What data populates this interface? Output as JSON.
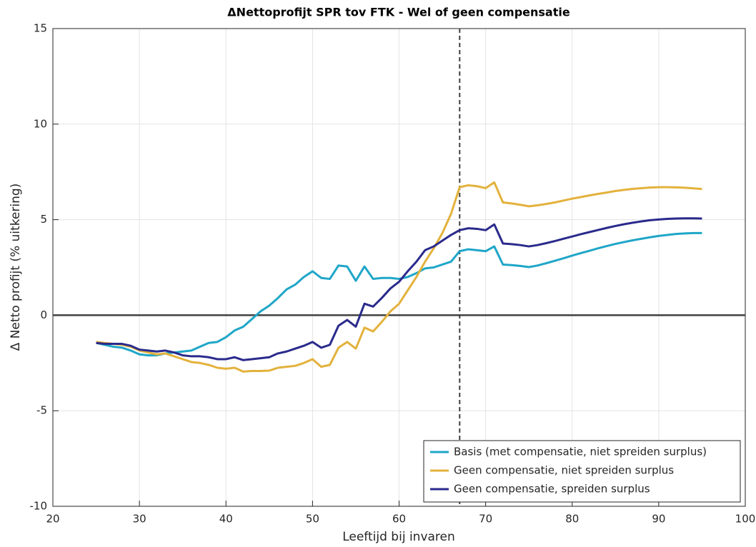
{
  "chart_data": {
    "type": "line",
    "title": "ΔNettoprofijt SPR tov FTK - Wel of geen compensatie",
    "xlabel": "Leeftijd bij invaren",
    "ylabel": "Δ Netto profijt (% uitkering)",
    "x": [
      25,
      26,
      27,
      28,
      29,
      30,
      31,
      32,
      33,
      34,
      35,
      36,
      37,
      38,
      39,
      40,
      41,
      42,
      43,
      44,
      45,
      46,
      47,
      48,
      49,
      50,
      51,
      52,
      53,
      54,
      55,
      56,
      57,
      58,
      59,
      60,
      61,
      62,
      63,
      64,
      65,
      66,
      67,
      68,
      69,
      70,
      71,
      72,
      73,
      74,
      75,
      76,
      77,
      78,
      79,
      80,
      81,
      82,
      83,
      84,
      85,
      86,
      87,
      88,
      89,
      90,
      91,
      92,
      93,
      94,
      95
    ],
    "series": [
      {
        "name": "Basis (met compensatie, niet spreiden surplus)",
        "color": "#1fa6c8",
        "values": [
          -1.45,
          -1.55,
          -1.65,
          -1.7,
          -1.85,
          -2.05,
          -2.1,
          -2.1,
          -2.0,
          -1.95,
          -1.9,
          -1.85,
          -1.65,
          -1.45,
          -1.4,
          -1.15,
          -0.8,
          -0.6,
          -0.2,
          0.2,
          0.5,
          0.9,
          1.35,
          1.6,
          2.0,
          2.3,
          1.95,
          1.9,
          2.6,
          2.55,
          1.8,
          2.55,
          1.9,
          1.95,
          1.95,
          1.9,
          2.0,
          2.2,
          2.45,
          2.5,
          2.65,
          2.8,
          3.35,
          3.45,
          3.4,
          3.35,
          3.6,
          2.65,
          2.62,
          2.58,
          2.52,
          2.6,
          2.72,
          2.85,
          2.98,
          3.12,
          3.25,
          3.37,
          3.5,
          3.62,
          3.73,
          3.83,
          3.92,
          4.0,
          4.08,
          4.15,
          4.2,
          4.25,
          4.28,
          4.3,
          4.3
        ]
      },
      {
        "name": "Geen compensatie, niet spreiden surplus",
        "color": "#e3b23c",
        "values": [
          -1.4,
          -1.45,
          -1.5,
          -1.55,
          -1.65,
          -1.85,
          -1.95,
          -2.05,
          -2.0,
          -2.15,
          -2.3,
          -2.45,
          -2.5,
          -2.6,
          -2.75,
          -2.8,
          -2.75,
          -2.95,
          -2.92,
          -2.92,
          -2.9,
          -2.75,
          -2.7,
          -2.65,
          -2.5,
          -2.3,
          -2.7,
          -2.6,
          -1.7,
          -1.4,
          -1.75,
          -0.65,
          -0.85,
          -0.35,
          0.2,
          0.6,
          1.3,
          2.0,
          2.8,
          3.5,
          4.3,
          5.3,
          6.7,
          6.8,
          6.75,
          6.65,
          6.95,
          5.9,
          5.85,
          5.78,
          5.7,
          5.75,
          5.82,
          5.9,
          6.0,
          6.1,
          6.18,
          6.27,
          6.35,
          6.42,
          6.5,
          6.56,
          6.61,
          6.65,
          6.68,
          6.7,
          6.7,
          6.69,
          6.67,
          6.64,
          6.6
        ]
      },
      {
        "name": "Geen compensatie, spreiden surplus",
        "color": "#2a2a8c",
        "values": [
          -1.45,
          -1.5,
          -1.5,
          -1.5,
          -1.6,
          -1.8,
          -1.85,
          -1.9,
          -1.85,
          -1.95,
          -2.1,
          -2.15,
          -2.15,
          -2.2,
          -2.3,
          -2.3,
          -2.2,
          -2.35,
          -2.3,
          -2.25,
          -2.2,
          -2.0,
          -1.9,
          -1.75,
          -1.6,
          -1.4,
          -1.7,
          -1.55,
          -0.55,
          -0.25,
          -0.6,
          0.6,
          0.45,
          0.9,
          1.4,
          1.75,
          2.3,
          2.8,
          3.4,
          3.6,
          3.9,
          4.2,
          4.45,
          4.55,
          4.52,
          4.45,
          4.75,
          3.75,
          3.72,
          3.67,
          3.6,
          3.67,
          3.77,
          3.88,
          4.0,
          4.12,
          4.24,
          4.35,
          4.46,
          4.57,
          4.67,
          4.76,
          4.84,
          4.91,
          4.97,
          5.01,
          5.04,
          5.06,
          5.07,
          5.07,
          5.06
        ]
      }
    ],
    "xlim": [
      20,
      100
    ],
    "xticks": [
      20,
      30,
      40,
      50,
      60,
      70,
      80,
      90,
      100
    ],
    "ylim": [
      -10,
      15
    ],
    "yticks": [
      -10,
      -5,
      0,
      5,
      10,
      15
    ],
    "grid": true,
    "legend": "lower right",
    "vline": 67,
    "hline": 0
  }
}
